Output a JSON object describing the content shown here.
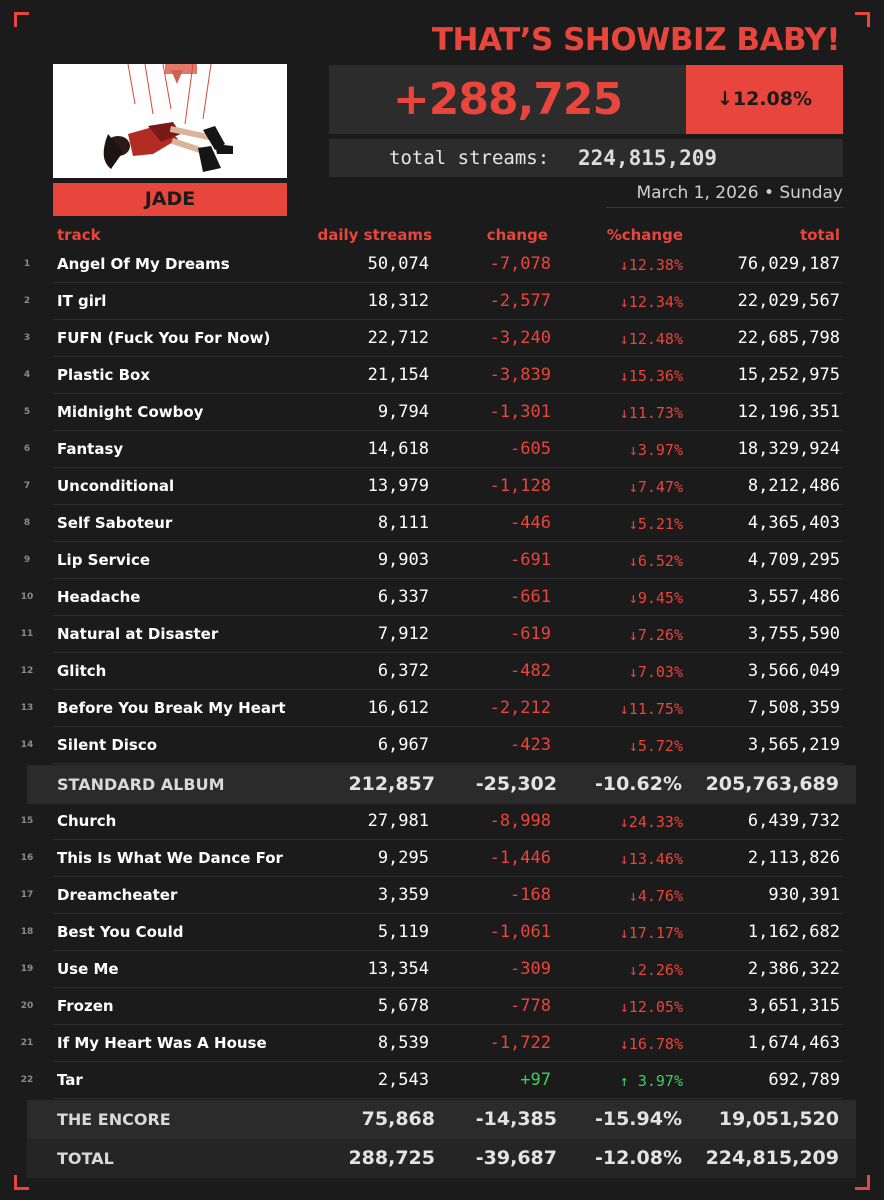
{
  "header": {
    "album_title": "THAT’S SHOWBIZ BABY!",
    "artist": "JADE",
    "daily_total": "+288,725",
    "pct_change": "↓12.08%",
    "total_label": "total streams:",
    "total_value": "224,815,209",
    "date": "March 1, 2026 • Sunday"
  },
  "columns": {
    "track": "track",
    "daily": "daily streams",
    "change": "change",
    "pct": "%change",
    "total": "total"
  },
  "standard_tracks": [
    {
      "rank": "1",
      "name": "Angel Of My Dreams",
      "daily": "50,074",
      "change": "-7,078",
      "pct": "↓12.38%",
      "total": "76,029,187"
    },
    {
      "rank": "2",
      "name": "IT girl",
      "daily": "18,312",
      "change": "-2,577",
      "pct": "↓12.34%",
      "total": "22,029,567"
    },
    {
      "rank": "3",
      "name": "FUFN (Fuck You For Now)",
      "daily": "22,712",
      "change": "-3,240",
      "pct": "↓12.48%",
      "total": "22,685,798"
    },
    {
      "rank": "4",
      "name": "Plastic Box",
      "daily": "21,154",
      "change": "-3,839",
      "pct": "↓15.36%",
      "total": "15,252,975"
    },
    {
      "rank": "5",
      "name": "Midnight Cowboy",
      "daily": "9,794",
      "change": "-1,301",
      "pct": "↓11.73%",
      "total": "12,196,351"
    },
    {
      "rank": "6",
      "name": "Fantasy",
      "daily": "14,618",
      "change": "-605",
      "pct": "↓3.97%",
      "total": "18,329,924"
    },
    {
      "rank": "7",
      "name": "Unconditional",
      "daily": "13,979",
      "change": "-1,128",
      "pct": "↓7.47%",
      "total": "8,212,486"
    },
    {
      "rank": "8",
      "name": "Self Saboteur",
      "daily": "8,111",
      "change": "-446",
      "pct": "↓5.21%",
      "total": "4,365,403"
    },
    {
      "rank": "9",
      "name": "Lip Service",
      "daily": "9,903",
      "change": "-691",
      "pct": "↓6.52%",
      "total": "4,709,295"
    },
    {
      "rank": "10",
      "name": "Headache",
      "daily": "6,337",
      "change": "-661",
      "pct": "↓9.45%",
      "total": "3,557,486"
    },
    {
      "rank": "11",
      "name": "Natural at Disaster",
      "daily": "7,912",
      "change": "-619",
      "pct": "↓7.26%",
      "total": "3,755,590"
    },
    {
      "rank": "12",
      "name": "Glitch",
      "daily": "6,372",
      "change": "-482",
      "pct": "↓7.03%",
      "total": "3,566,049"
    },
    {
      "rank": "13",
      "name": "Before You Break My Heart",
      "daily": "16,612",
      "change": "-2,212",
      "pct": "↓11.75%",
      "total": "7,508,359"
    },
    {
      "rank": "14",
      "name": "Silent Disco",
      "daily": "6,967",
      "change": "-423",
      "pct": "↓5.72%",
      "total": "3,565,219"
    }
  ],
  "standard_summary": {
    "label": "STANDARD ALBUM",
    "daily": "212,857",
    "change": "-25,302",
    "pct": "-10.62%",
    "total": "205,763,689"
  },
  "encore_tracks": [
    {
      "rank": "15",
      "name": "Church",
      "daily": "27,981",
      "change": "-8,998",
      "pct": "↓24.33%",
      "total": "6,439,732"
    },
    {
      "rank": "16",
      "name": "This Is What We Dance For",
      "daily": "9,295",
      "change": "-1,446",
      "pct": "↓13.46%",
      "total": "2,113,826"
    },
    {
      "rank": "17",
      "name": "Dreamcheater",
      "daily": "3,359",
      "change": "-168",
      "pct": "↓4.76%",
      "total": "930,391"
    },
    {
      "rank": "18",
      "name": "Best You Could",
      "daily": "5,119",
      "change": "-1,061",
      "pct": "↓17.17%",
      "total": "1,162,682"
    },
    {
      "rank": "19",
      "name": "Use Me",
      "daily": "13,354",
      "change": "-309",
      "pct": "↓2.26%",
      "total": "2,386,322"
    },
    {
      "rank": "20",
      "name": "Frozen",
      "daily": "5,678",
      "change": "-778",
      "pct": "↓12.05%",
      "total": "3,651,315"
    },
    {
      "rank": "21",
      "name": "If My Heart Was A House",
      "daily": "8,539",
      "change": "-1,722",
      "pct": "↓16.78%",
      "total": "1,674,463"
    },
    {
      "rank": "22",
      "name": "Tar",
      "daily": "2,543",
      "change": "+97",
      "pct": "↑ 3.97%",
      "total": "692,789",
      "positive": true
    }
  ],
  "encore_summary": {
    "label": "THE ENCORE",
    "daily": "75,868",
    "change": "-14,385",
    "pct": "-15.94%",
    "total": "19,051,520"
  },
  "grand_total": {
    "label": "TOTAL",
    "daily": "288,725",
    "change": "-39,687",
    "pct": "-12.08%",
    "total": "224,815,209"
  },
  "colors": {
    "accent": "#e8453c",
    "background": "#1b1b1b",
    "panel": "#2c2c2c",
    "positive": "#3fcf5b"
  }
}
